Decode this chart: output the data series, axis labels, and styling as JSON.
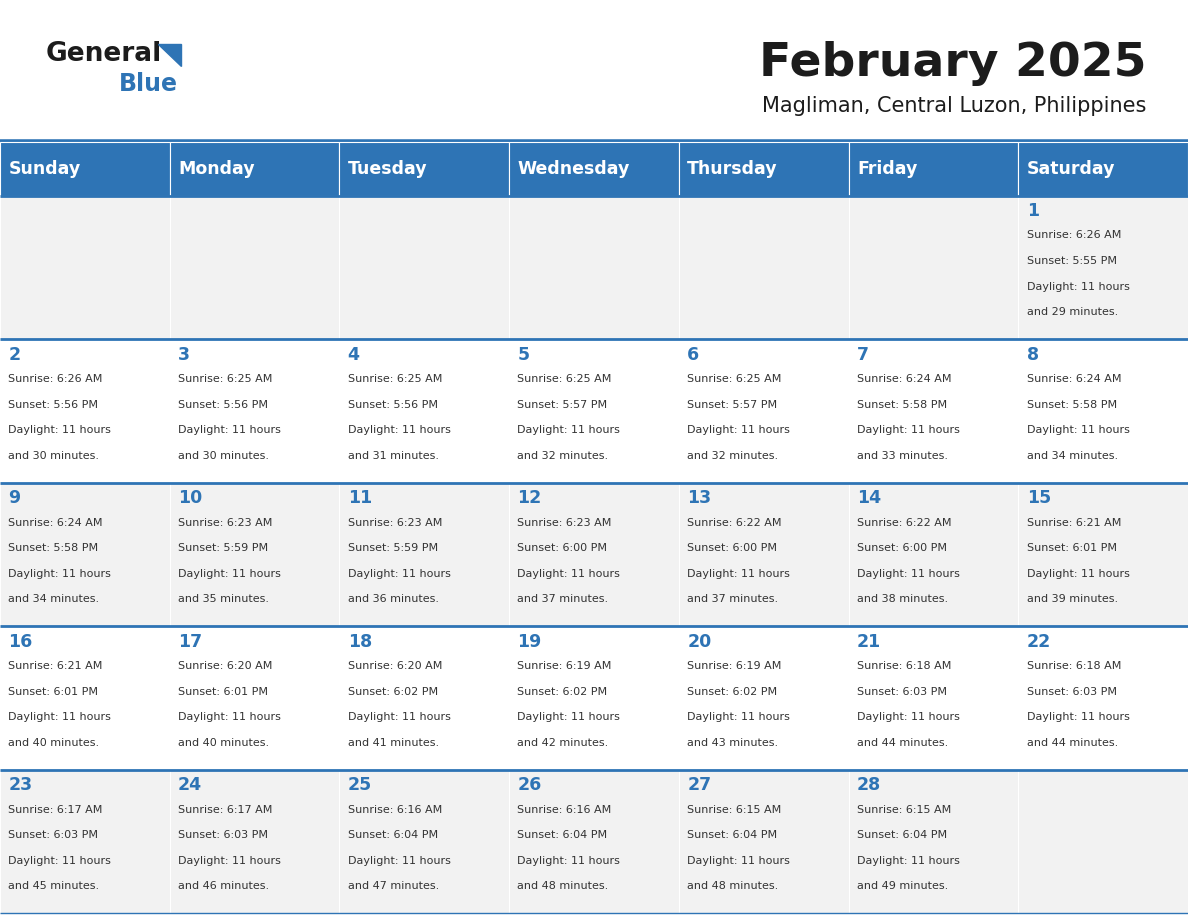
{
  "title": "February 2025",
  "subtitle": "Magliman, Central Luzon, Philippines",
  "header_bg": "#2E74B5",
  "header_text_color": "#FFFFFF",
  "cell_bg_light": "#F2F2F2",
  "cell_bg_white": "#FFFFFF",
  "day_number_color": "#2E74B5",
  "text_color": "#333333",
  "line_color": "#2E74B5",
  "days_of_week": [
    "Sunday",
    "Monday",
    "Tuesday",
    "Wednesday",
    "Thursday",
    "Friday",
    "Saturday"
  ],
  "weeks": [
    [
      {
        "day": null,
        "sunrise": null,
        "sunset": null,
        "daylight": null
      },
      {
        "day": null,
        "sunrise": null,
        "sunset": null,
        "daylight": null
      },
      {
        "day": null,
        "sunrise": null,
        "sunset": null,
        "daylight": null
      },
      {
        "day": null,
        "sunrise": null,
        "sunset": null,
        "daylight": null
      },
      {
        "day": null,
        "sunrise": null,
        "sunset": null,
        "daylight": null
      },
      {
        "day": null,
        "sunrise": null,
        "sunset": null,
        "daylight": null
      },
      {
        "day": 1,
        "sunrise": "6:26 AM",
        "sunset": "5:55 PM",
        "daylight": "11 hours and 29 minutes."
      }
    ],
    [
      {
        "day": 2,
        "sunrise": "6:26 AM",
        "sunset": "5:56 PM",
        "daylight": "11 hours and 30 minutes."
      },
      {
        "day": 3,
        "sunrise": "6:25 AM",
        "sunset": "5:56 PM",
        "daylight": "11 hours and 30 minutes."
      },
      {
        "day": 4,
        "sunrise": "6:25 AM",
        "sunset": "5:56 PM",
        "daylight": "11 hours and 31 minutes."
      },
      {
        "day": 5,
        "sunrise": "6:25 AM",
        "sunset": "5:57 PM",
        "daylight": "11 hours and 32 minutes."
      },
      {
        "day": 6,
        "sunrise": "6:25 AM",
        "sunset": "5:57 PM",
        "daylight": "11 hours and 32 minutes."
      },
      {
        "day": 7,
        "sunrise": "6:24 AM",
        "sunset": "5:58 PM",
        "daylight": "11 hours and 33 minutes."
      },
      {
        "day": 8,
        "sunrise": "6:24 AM",
        "sunset": "5:58 PM",
        "daylight": "11 hours and 34 minutes."
      }
    ],
    [
      {
        "day": 9,
        "sunrise": "6:24 AM",
        "sunset": "5:58 PM",
        "daylight": "11 hours and 34 minutes."
      },
      {
        "day": 10,
        "sunrise": "6:23 AM",
        "sunset": "5:59 PM",
        "daylight": "11 hours and 35 minutes."
      },
      {
        "day": 11,
        "sunrise": "6:23 AM",
        "sunset": "5:59 PM",
        "daylight": "11 hours and 36 minutes."
      },
      {
        "day": 12,
        "sunrise": "6:23 AM",
        "sunset": "6:00 PM",
        "daylight": "11 hours and 37 minutes."
      },
      {
        "day": 13,
        "sunrise": "6:22 AM",
        "sunset": "6:00 PM",
        "daylight": "11 hours and 37 minutes."
      },
      {
        "day": 14,
        "sunrise": "6:22 AM",
        "sunset": "6:00 PM",
        "daylight": "11 hours and 38 minutes."
      },
      {
        "day": 15,
        "sunrise": "6:21 AM",
        "sunset": "6:01 PM",
        "daylight": "11 hours and 39 minutes."
      }
    ],
    [
      {
        "day": 16,
        "sunrise": "6:21 AM",
        "sunset": "6:01 PM",
        "daylight": "11 hours and 40 minutes."
      },
      {
        "day": 17,
        "sunrise": "6:20 AM",
        "sunset": "6:01 PM",
        "daylight": "11 hours and 40 minutes."
      },
      {
        "day": 18,
        "sunrise": "6:20 AM",
        "sunset": "6:02 PM",
        "daylight": "11 hours and 41 minutes."
      },
      {
        "day": 19,
        "sunrise": "6:19 AM",
        "sunset": "6:02 PM",
        "daylight": "11 hours and 42 minutes."
      },
      {
        "day": 20,
        "sunrise": "6:19 AM",
        "sunset": "6:02 PM",
        "daylight": "11 hours and 43 minutes."
      },
      {
        "day": 21,
        "sunrise": "6:18 AM",
        "sunset": "6:03 PM",
        "daylight": "11 hours and 44 minutes."
      },
      {
        "day": 22,
        "sunrise": "6:18 AM",
        "sunset": "6:03 PM",
        "daylight": "11 hours and 44 minutes."
      }
    ],
    [
      {
        "day": 23,
        "sunrise": "6:17 AM",
        "sunset": "6:03 PM",
        "daylight": "11 hours and 45 minutes."
      },
      {
        "day": 24,
        "sunrise": "6:17 AM",
        "sunset": "6:03 PM",
        "daylight": "11 hours and 46 minutes."
      },
      {
        "day": 25,
        "sunrise": "6:16 AM",
        "sunset": "6:04 PM",
        "daylight": "11 hours and 47 minutes."
      },
      {
        "day": 26,
        "sunrise": "6:16 AM",
        "sunset": "6:04 PM",
        "daylight": "11 hours and 48 minutes."
      },
      {
        "day": 27,
        "sunrise": "6:15 AM",
        "sunset": "6:04 PM",
        "daylight": "11 hours and 48 minutes."
      },
      {
        "day": 28,
        "sunrise": "6:15 AM",
        "sunset": "6:04 PM",
        "daylight": "11 hours and 49 minutes."
      },
      {
        "day": null,
        "sunrise": null,
        "sunset": null,
        "daylight": null
      }
    ]
  ]
}
